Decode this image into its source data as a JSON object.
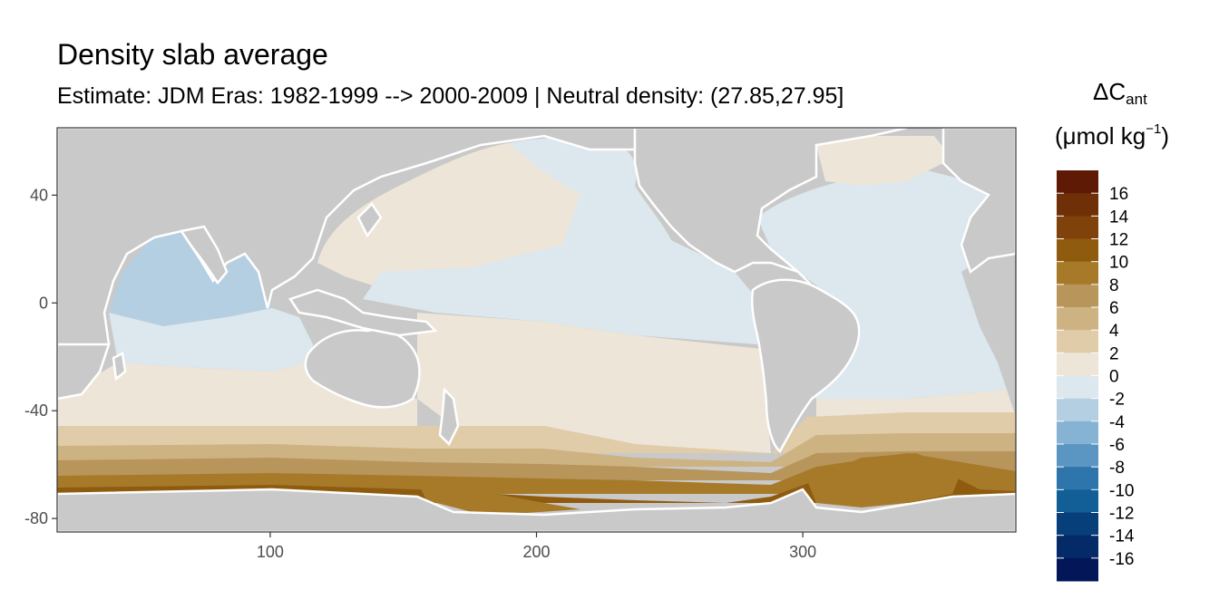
{
  "header": {
    "title": "Density slab average",
    "subtitle": "Estimate: JDM Eras: 1982-1999 --> 2000-2009 | Neutral density: (27.85,27.95]"
  },
  "legend": {
    "title_symbol": "ΔC",
    "title_subscript": "ant",
    "unit_prefix": "(μmol kg",
    "unit_superscript": "−1",
    "unit_suffix": ")",
    "labels": [
      "16",
      "14",
      "12",
      "10",
      "8",
      "6",
      "4",
      "2",
      "0",
      "-2",
      "-4",
      "-6",
      "-8",
      "-10",
      "-12",
      "-14",
      "-16"
    ],
    "colors": [
      "#5e1a05",
      "#6f2f07",
      "#7e420a",
      "#8f5c0f",
      "#a77a2a",
      "#b8955a",
      "#cdb282",
      "#e1ccaa",
      "#ede5d8",
      "#dce7ee",
      "#b5cfe2",
      "#86b2d3",
      "#5b96c3",
      "#2e75ab",
      "#115f96",
      "#063f7a",
      "#042a67",
      "#021658"
    ]
  },
  "colors": {
    "land": "#c9c9c9",
    "coastline_gap": "#ffffff",
    "panel_border": "#333333"
  },
  "chart_data": {
    "type": "heatmap",
    "title": "Density slab average",
    "subtitle": "Estimate: JDM Eras: 1982-1999 --> 2000-2009 | Neutral density: (27.85,27.95]",
    "xlabel": "",
    "ylabel": "",
    "x_ticks": [
      100,
      200,
      300
    ],
    "y_ticks": [
      40,
      0,
      -40,
      -80
    ],
    "xlim": [
      20,
      380
    ],
    "ylim": [
      -85,
      65
    ],
    "value_unit": "μmol kg-1",
    "legend_breaks": [
      16,
      14,
      12,
      10,
      8,
      6,
      4,
      2,
      0,
      -2,
      -4,
      -6,
      -8,
      -10,
      -12,
      -14,
      -16
    ],
    "grid": false,
    "legend_position": "right"
  }
}
